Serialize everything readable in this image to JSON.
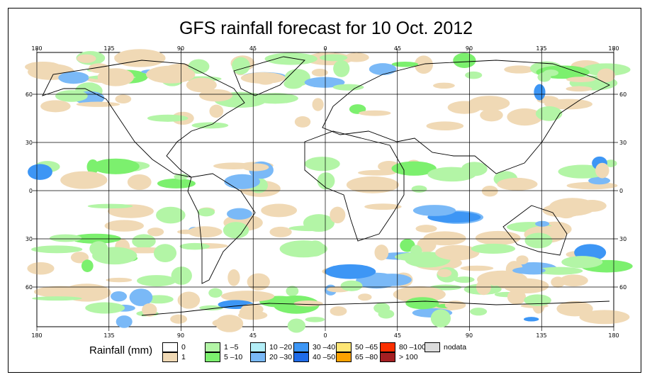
{
  "title": "GFS rainfall forecast for 10 Oct. 2012",
  "lon_labels": [
    "180",
    "135",
    "90",
    "45",
    "0",
    "45",
    "90",
    "135",
    "180"
  ],
  "lat_labels": [
    "60",
    "30",
    "0",
    "30",
    "60"
  ],
  "legend": {
    "title": "Rainfall (mm)",
    "items": [
      {
        "label": "0",
        "color": "#ffffff"
      },
      {
        "label": "1",
        "color": "#f0d9b5"
      },
      {
        "label": "1 –5",
        "color": "#b3f5a6"
      },
      {
        "label": "5 –10",
        "color": "#7cf06e"
      },
      {
        "label": "10 –20",
        "color": "#b3eef7"
      },
      {
        "label": "20 –30",
        "color": "#7ab9f7"
      },
      {
        "label": "30 –40",
        "color": "#3d96f5"
      },
      {
        "label": "40 –50",
        "color": "#1f6be8"
      },
      {
        "label": "50 –65",
        "color": "#fde574"
      },
      {
        "label": "65 –80",
        "color": "#fba200"
      },
      {
        "label": "80 –100",
        "color": "#fb3000"
      },
      {
        "label": "> 100",
        "color": "#a51f22"
      },
      {
        "label": "nodata",
        "color": "#dcdcdc"
      }
    ]
  }
}
